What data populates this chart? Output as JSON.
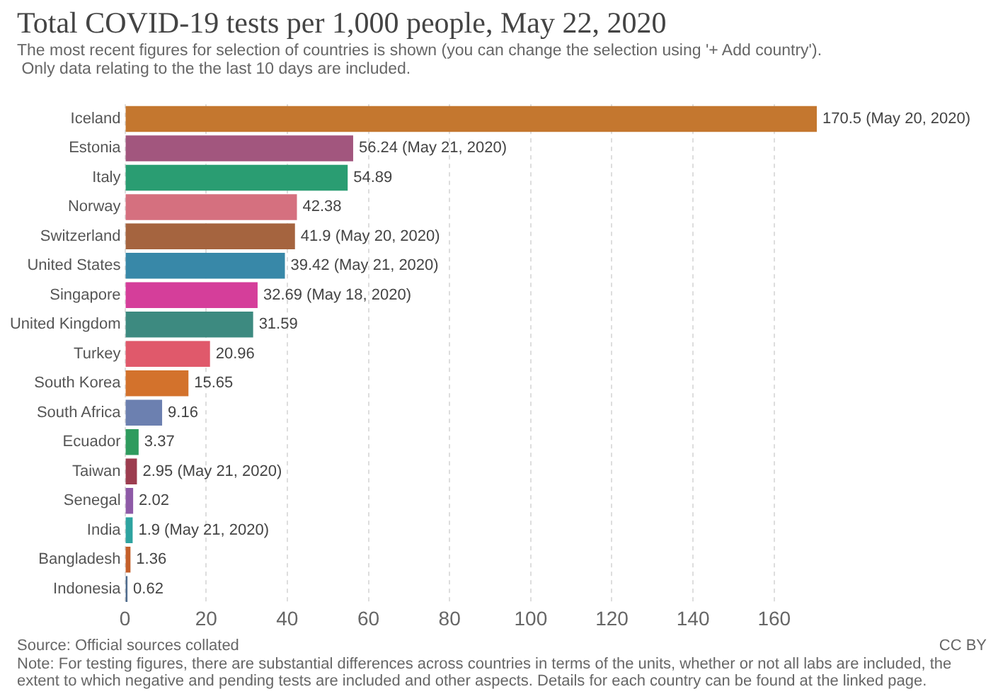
{
  "chart_data": {
    "type": "bar",
    "orientation": "horizontal",
    "title": "Total COVID-19 tests per 1,000 people, May 22, 2020",
    "subtitle": "The most recent figures for selection of countries is shown (you can change the selection using '+ Add country').\n Only data relating to the the last 10 days are included.",
    "categories": [
      "Iceland",
      "Estonia",
      "Italy",
      "Norway",
      "Switzerland",
      "United States",
      "Singapore",
      "United Kingdom",
      "Turkey",
      "South Korea",
      "South Africa",
      "Ecuador",
      "Taiwan",
      "Senegal",
      "India",
      "Bangladesh",
      "Indonesia"
    ],
    "values": [
      170.5,
      56.24,
      54.89,
      42.38,
      41.9,
      39.42,
      32.69,
      31.59,
      20.96,
      15.65,
      9.16,
      3.37,
      2.95,
      2.02,
      1.9,
      1.36,
      0.62
    ],
    "value_labels": [
      "170.5 (May 20, 2020)",
      "56.24 (May 21, 2020)",
      "54.89",
      "42.38",
      "41.9 (May 20, 2020)",
      "39.42 (May 21, 2020)",
      "32.69 (May 18, 2020)",
      "31.59",
      "20.96",
      "15.65",
      "9.16",
      "3.37",
      "2.95 (May 21, 2020)",
      "2.02",
      "1.9 (May 21, 2020)",
      "1.36",
      "0.62"
    ],
    "colors": [
      "#c4772f",
      "#a2567e",
      "#2a9d72",
      "#d5707f",
      "#a5643f",
      "#3888a8",
      "#d53e9a",
      "#3d8a80",
      "#e0596b",
      "#d3722c",
      "#6c80b0",
      "#2f9b5e",
      "#9c3d4f",
      "#8e5aa7",
      "#2ea3a0",
      "#c45f2a",
      "#4d6a8c"
    ],
    "xlim": [
      0,
      170.5
    ],
    "xticks": [
      0,
      20,
      40,
      60,
      80,
      100,
      120,
      140,
      160
    ],
    "grid": "x",
    "annotations": [
      "Source: Official sources collated",
      "CC BY",
      "Note: For testing figures, there are substantial differences across countries in terms of the units, whether or not all labs are included, the extent to which negative and pending tests are included and other aspects. Details for each country can be found at the linked page."
    ]
  }
}
